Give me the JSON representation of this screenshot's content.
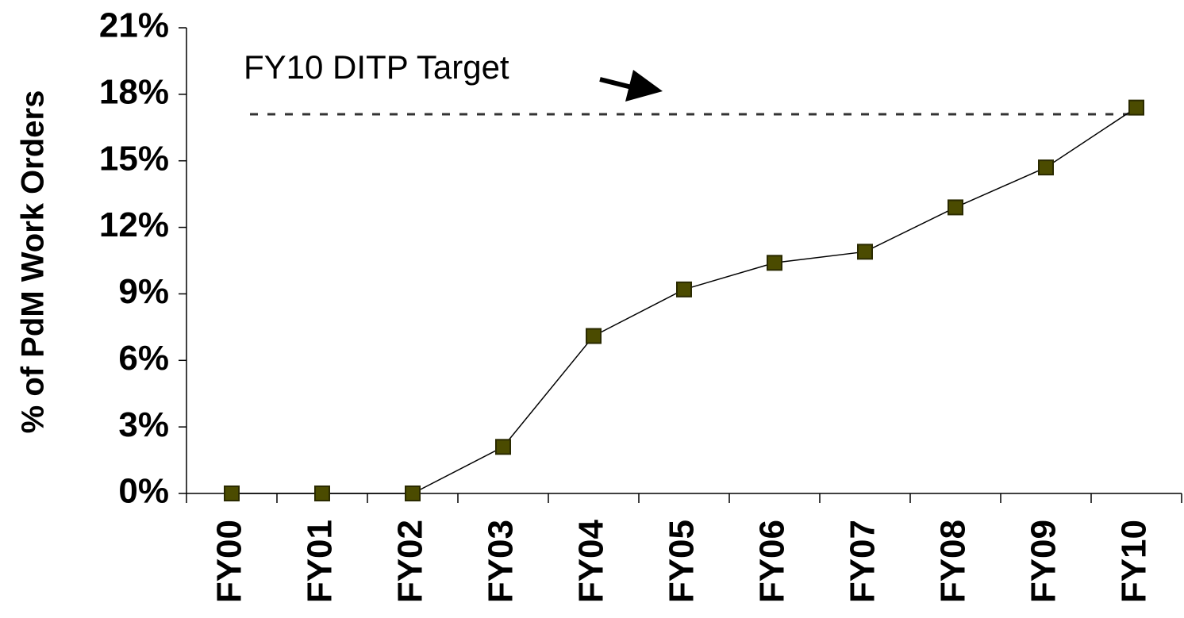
{
  "chart_data": {
    "type": "line",
    "y_label": "% of PdM Work Orders",
    "annotation": "FY10 DITP Target",
    "target": 17.1,
    "categories": [
      "FY00",
      "FY01",
      "FY02",
      "FY03",
      "FY04",
      "FY05",
      "FY06",
      "FY07",
      "FY08",
      "FY09",
      "FY10"
    ],
    "series": [
      {
        "color": "#4b4b00",
        "values": [
          0,
          0,
          0,
          2.1,
          7.1,
          9.2,
          10.4,
          10.9,
          12.9,
          14.7,
          17.4
        ]
      }
    ],
    "ylim": [
      0,
      21
    ],
    "yticks": [
      {
        "value": 0,
        "label": "0%"
      },
      {
        "value": 3,
        "label": "3%"
      },
      {
        "value": 6,
        "label": "6%"
      },
      {
        "value": 9,
        "label": "9%"
      },
      {
        "value": 12,
        "label": "12%"
      },
      {
        "value": 15,
        "label": "15%"
      },
      {
        "value": 18,
        "label": "18%"
      },
      {
        "value": 21,
        "label": "21%"
      }
    ]
  }
}
